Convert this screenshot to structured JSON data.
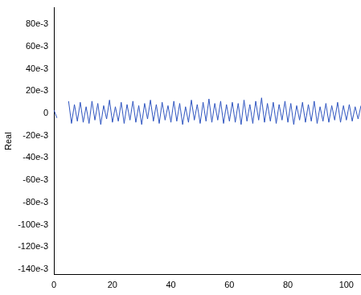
{
  "chart_data": {
    "type": "line",
    "y_label": "Real",
    "x": [
      0,
      1,
      2,
      3,
      4,
      5,
      6,
      7,
      8,
      9,
      10,
      11,
      12,
      13,
      14,
      15,
      16,
      17,
      18,
      19,
      20,
      21,
      22,
      23,
      24,
      25,
      26,
      27,
      28,
      29,
      30,
      31,
      32,
      33,
      34,
      35,
      36,
      37,
      38,
      39,
      40,
      41,
      42,
      43,
      44,
      45,
      46,
      47,
      48,
      49,
      50,
      51,
      52,
      53,
      54,
      55,
      56,
      57,
      58,
      59,
      60,
      61,
      62,
      63,
      64,
      65,
      66,
      67,
      68,
      69,
      70,
      71,
      72,
      73,
      74,
      75,
      76,
      77,
      78,
      79,
      80,
      81,
      82,
      83,
      84,
      85,
      86,
      87,
      88,
      89,
      90,
      91,
      92,
      93,
      94,
      95,
      96,
      97,
      98,
      99,
      100,
      101,
      102,
      103,
      104,
      105
    ],
    "values": [
      0.003,
      -0.004,
      null,
      null,
      null,
      0.011,
      -0.009,
      0.008,
      -0.007,
      0.01,
      -0.008,
      0.006,
      -0.009,
      0.011,
      -0.006,
      0.009,
      -0.01,
      0.007,
      -0.005,
      0.012,
      -0.008,
      0.006,
      -0.007,
      0.01,
      -0.009,
      0.008,
      -0.006,
      0.011,
      -0.008,
      0.007,
      -0.01,
      0.009,
      -0.005,
      0.012,
      -0.007,
      0.008,
      -0.009,
      0.01,
      -0.006,
      0.007,
      -0.008,
      0.011,
      -0.007,
      0.009,
      -0.01,
      0.006,
      -0.008,
      0.012,
      -0.006,
      0.008,
      -0.009,
      0.01,
      -0.007,
      0.013,
      -0.008,
      0.009,
      -0.006,
      0.011,
      -0.009,
      0.008,
      -0.007,
      0.01,
      -0.008,
      0.009,
      -0.01,
      0.012,
      -0.007,
      0.008,
      -0.009,
      0.011,
      -0.006,
      0.014,
      -0.008,
      0.009,
      -0.007,
      0.01,
      -0.009,
      0.008,
      -0.006,
      0.011,
      -0.008,
      0.009,
      -0.01,
      0.007,
      -0.006,
      0.01,
      -0.008,
      0.008,
      -0.007,
      0.011,
      -0.009,
      0.006,
      -0.007,
      0.009,
      -0.008,
      0.007,
      -0.006,
      0.01,
      -0.008,
      0.007,
      -0.006,
      0.008,
      -0.007,
      0.006,
      -0.005,
      0.007
    ],
    "color": "#2f55c0",
    "xlim": [
      0,
      105
    ],
    "xticks": [
      0,
      20,
      40,
      60,
      80,
      100
    ],
    "ylim": [
      -0.145,
      0.095
    ],
    "yticks": [
      {
        "value": 0.08,
        "label": "80e-3"
      },
      {
        "value": 0.06,
        "label": "60e-3"
      },
      {
        "value": 0.04,
        "label": "40e-3"
      },
      {
        "value": 0.02,
        "label": "20e-3"
      },
      0,
      {
        "value": -0.02,
        "label": "-20e-3"
      },
      {
        "value": -0.04,
        "label": "-40e-3"
      },
      {
        "value": -0.06,
        "label": "-60e-3"
      },
      {
        "value": -0.08,
        "label": "-80e-3"
      },
      {
        "value": -0.1,
        "label": "-100e-3"
      },
      {
        "value": -0.12,
        "label": "-120e-3"
      },
      {
        "value": -0.14,
        "label": "-140e-3"
      }
    ],
    "grid": false
  }
}
